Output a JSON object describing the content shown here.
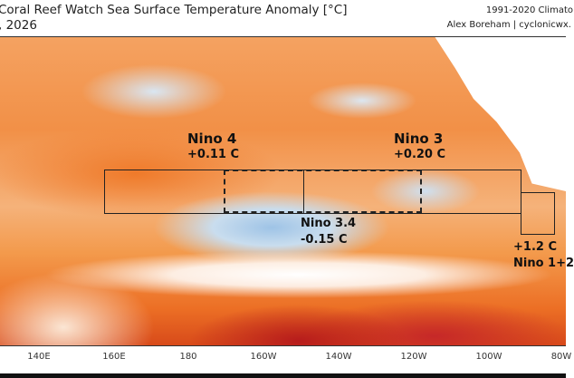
{
  "header": {
    "title": "Coral Reef Watch Sea Surface Temperature Anomaly [°C]",
    "date": ", 2026",
    "climatology": "1991-2020 Climato",
    "credit": "Alex Boreham | cyclonicwx."
  },
  "regions": [
    {
      "name": "Nino 4",
      "value": "+0.11 C"
    },
    {
      "name": "Nino 3",
      "value": "+0.20 C"
    },
    {
      "name": "Nino 3.4",
      "value": "-0.15 C"
    },
    {
      "name": "Nino 1+2",
      "value": "+1.2 C"
    }
  ],
  "x_ticks": [
    "140E",
    "160E",
    "180",
    "160W",
    "140W",
    "120W",
    "100W",
    "80W"
  ],
  "colors": {
    "warm": "#f29047",
    "hot": "#c62828",
    "cool": "#9ec3e6",
    "neutral": "#ffffff"
  }
}
